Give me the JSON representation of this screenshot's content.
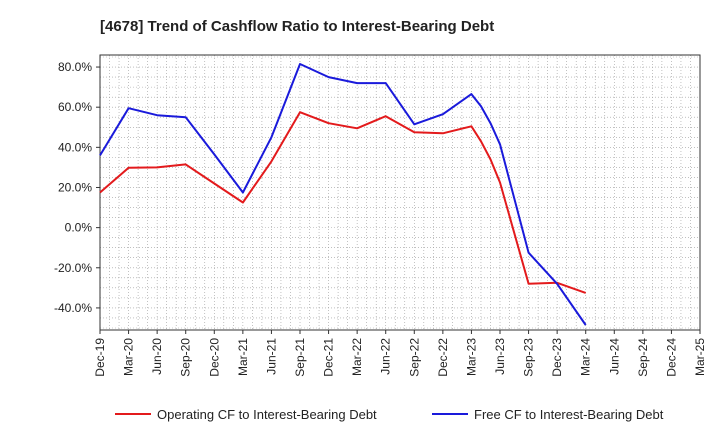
{
  "chart_data": {
    "type": "line",
    "title": "[4678]  Trend of Cashflow Ratio to Interest-Bearing Debt",
    "xlabel": "",
    "ylabel": "",
    "x": [
      "Dec-19",
      "Mar-20",
      "Jun-20",
      "Sep-20",
      "Dec-20",
      "Mar-21",
      "Jun-21",
      "Sep-21",
      "Dec-21",
      "Mar-22",
      "Jun-22",
      "Sep-22",
      "Dec-22",
      "Mar-23",
      "Jun-23",
      "Sep-23",
      "Dec-23",
      "Mar-24",
      "Jun-24",
      "Sep-24",
      "Dec-24",
      "Mar-25"
    ],
    "ylim": [
      -51,
      86
    ],
    "yticks": [
      80,
      60,
      40,
      20,
      0,
      -20,
      -40
    ],
    "ytick_labels": [
      "80.0%",
      "60.0%",
      "40.0%",
      "20.0%",
      "0.0%",
      "-20.0%",
      "-40.0%"
    ],
    "grid": true,
    "legend_position": "bottom",
    "series": [
      {
        "name": "Operating CF to Interest-Bearing Debt",
        "color": "#e31a1c",
        "points": [
          [
            "Dec-19",
            17.5
          ],
          [
            "Mar-20",
            29.8
          ],
          [
            "Jun-20",
            30.0
          ],
          [
            "Sep-20",
            31.5
          ],
          [
            "Dec-20",
            22.0
          ],
          [
            "Mar-21",
            12.5
          ],
          [
            "Jun-21",
            33.0
          ],
          [
            "Sep-21",
            57.5
          ],
          [
            "Dec-21",
            52.0
          ],
          [
            "Mar-22",
            49.5
          ],
          [
            "Jun-22",
            55.5
          ],
          [
            "Sep-22",
            47.5
          ],
          [
            "Dec-22",
            47.0
          ],
          [
            "Mar-23",
            50.5
          ],
          [
            "Apr-23",
            43.0
          ],
          [
            "May-23",
            34.0
          ],
          [
            "Jun-23",
            22.5
          ],
          [
            "Sep-23",
            -28.0
          ],
          [
            "Dec-23",
            -27.5
          ],
          [
            "Mar-24",
            -32.5
          ]
        ]
      },
      {
        "name": "Free CF to Interest-Bearing Debt",
        "color": "#1a1adb",
        "points": [
          [
            "Dec-19",
            36.0
          ],
          [
            "Mar-20",
            59.5
          ],
          [
            "Jun-20",
            56.0
          ],
          [
            "Sep-20",
            55.0
          ],
          [
            "Dec-20",
            36.5
          ],
          [
            "Mar-21",
            17.5
          ],
          [
            "Jun-21",
            45.0
          ],
          [
            "Sep-21",
            81.5
          ],
          [
            "Dec-21",
            75.0
          ],
          [
            "Mar-22",
            72.0
          ],
          [
            "Jun-22",
            72.0
          ],
          [
            "Sep-22",
            51.5
          ],
          [
            "Dec-22",
            56.5
          ],
          [
            "Mar-23",
            66.5
          ],
          [
            "Apr-23",
            60.5
          ],
          [
            "May-23",
            52.0
          ],
          [
            "Jun-23",
            41.5
          ],
          [
            "Sep-23",
            -12.5
          ],
          [
            "Dec-23",
            -28.0
          ],
          [
            "Mar-24",
            -48.5
          ]
        ]
      }
    ]
  }
}
